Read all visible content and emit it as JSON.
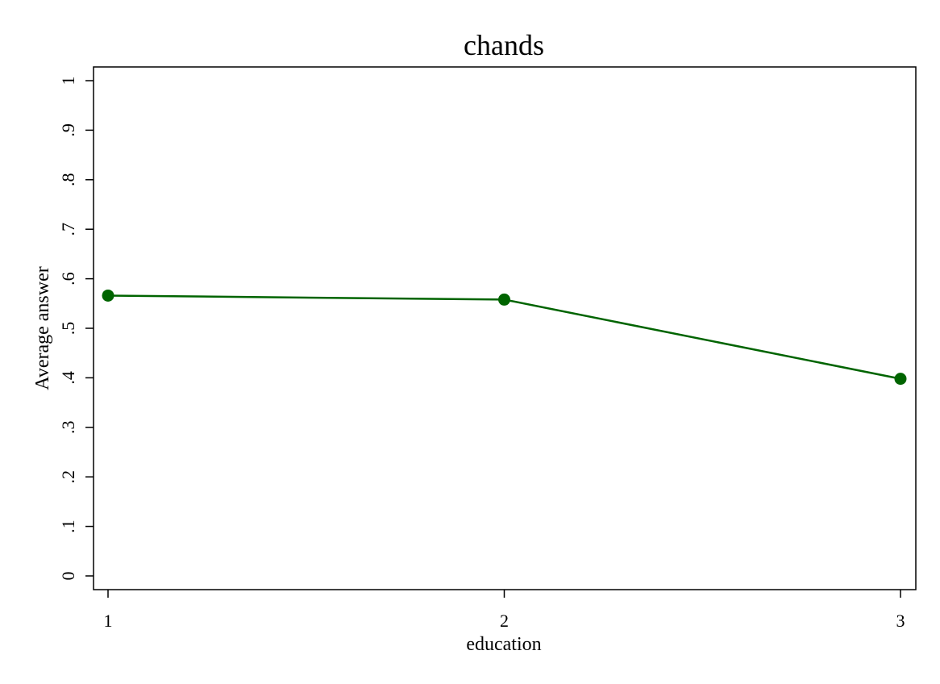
{
  "chart_data": {
    "type": "line",
    "title": "chands",
    "xlabel": "education",
    "ylabel": "Average answer",
    "x": [
      1,
      2,
      3
    ],
    "xticks": [
      1,
      2,
      3
    ],
    "xtick_labels": [
      "1",
      "2",
      "3"
    ],
    "yticks": [
      0,
      0.1,
      0.2,
      0.3,
      0.4,
      0.5,
      0.6,
      0.7,
      0.8,
      0.9,
      1
    ],
    "ytick_labels": [
      "0",
      ".1",
      ".2",
      ".3",
      ".4",
      ".5",
      ".6",
      ".7",
      ".8",
      ".9",
      "1"
    ],
    "ylim": [
      0,
      1
    ],
    "xlim": [
      1,
      3
    ],
    "grid": false,
    "series": [
      {
        "values": [
          0.566,
          0.558,
          0.398
        ],
        "color": "#006400"
      }
    ]
  }
}
